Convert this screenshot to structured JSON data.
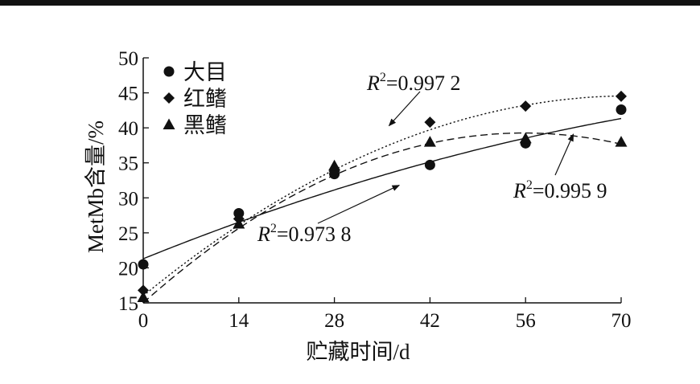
{
  "chart_data": {
    "type": "scatter",
    "xlabel": "贮藏时间/d",
    "ylabel": "MetMb含量/%",
    "x_ticks": [
      0,
      14,
      28,
      42,
      56,
      70
    ],
    "y_ticks": [
      15,
      20,
      25,
      30,
      35,
      40,
      45,
      50
    ],
    "xlim": [
      0,
      70
    ],
    "ylim": [
      15,
      50
    ],
    "legend_position": "top-left",
    "series": [
      {
        "name": "大目",
        "marker": "circle",
        "line_style": "solid",
        "x": [
          0,
          14,
          28,
          42,
          56,
          70
        ],
        "values": [
          20.5,
          27.8,
          33.4,
          34.7,
          37.8,
          42.6
        ],
        "fit": {
          "a": 21.3,
          "b": 0.394,
          "c": -0.00154
        },
        "r2_label": "R²=0.973 8"
      },
      {
        "name": "红鳍",
        "marker": "diamond",
        "line_style": "dotted",
        "x": [
          0,
          14,
          28,
          42,
          56,
          70
        ],
        "values": [
          16.8,
          27.0,
          33.8,
          40.8,
          43.1,
          44.5
        ],
        "fit": {
          "a": 16.0,
          "b": 0.8,
          "c": -0.0056
        },
        "r2_label": "R²=0.997 2"
      },
      {
        "name": "黑鳍",
        "marker": "triangle",
        "line_style": "dashed",
        "x": [
          0,
          14,
          28,
          42,
          56,
          70
        ],
        "values": [
          15.8,
          26.3,
          34.6,
          38.0,
          38.5,
          38.0
        ],
        "fit": {
          "a": 15.0,
          "b": 0.87,
          "c": -0.0078
        },
        "r2_label": "R²=0.995 9"
      }
    ],
    "annotations": [
      {
        "text": "R²=0.997 2",
        "series": "红鳍",
        "arrow_to": [
          36,
          40.3
        ]
      },
      {
        "text": "R²=0.995 9",
        "series": "黑鳍",
        "arrow_to": [
          63,
          39.1
        ]
      },
      {
        "text": "R²=0.973 8",
        "series": "大目",
        "arrow_to": [
          37.5,
          31.8
        ]
      }
    ]
  }
}
